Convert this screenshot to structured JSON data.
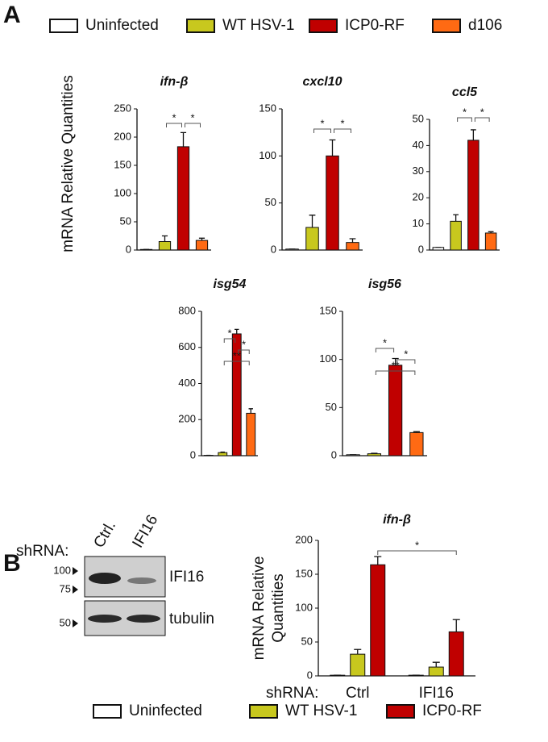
{
  "panel_labels": [
    "A",
    "B"
  ],
  "legend_a": [
    {
      "name": "Uninfected",
      "color": "#ffffff"
    },
    {
      "name": "WT HSV-1",
      "color": "#c8c81e"
    },
    {
      "name": "ICP0-RF",
      "color": "#c00000"
    },
    {
      "name": "d106",
      "color": "#ff6a13"
    }
  ],
  "ylabel_a": "mRNA  Relative Quantities",
  "blot": {
    "prefix": "shRNA:",
    "lanes": [
      "Ctrl.",
      "IFI16"
    ],
    "markers": [
      "100",
      "75",
      "50"
    ],
    "proteins": [
      "IFI16",
      "tubulin"
    ]
  },
  "chart_data": [
    {
      "type": "bar",
      "title": "ifn-β",
      "values": [
        1,
        15,
        183,
        17
      ],
      "errors": [
        0,
        10,
        25,
        4
      ],
      "ylim": [
        0,
        250
      ],
      "yticks": [
        0,
        50,
        100,
        150,
        200,
        250
      ],
      "brackets": [
        "*",
        "*"
      ]
    },
    {
      "type": "bar",
      "title": "cxcl10",
      "values": [
        1,
        24,
        100,
        8
      ],
      "errors": [
        0,
        13,
        17,
        4
      ],
      "ylim": [
        0,
        150
      ],
      "yticks": [
        0,
        50,
        100,
        150
      ],
      "brackets": [
        "*",
        "*"
      ]
    },
    {
      "type": "bar",
      "title": "ccl5",
      "values": [
        1,
        11,
        42,
        6.5
      ],
      "errors": [
        0,
        2.5,
        4,
        0.5
      ],
      "ylim": [
        0,
        50
      ],
      "yticks": [
        0,
        10,
        20,
        30,
        40,
        50
      ],
      "brackets": [
        "*",
        "*"
      ]
    },
    {
      "type": "bar",
      "title": "isg54",
      "values": [
        2,
        17,
        675,
        235
      ],
      "errors": [
        0,
        3,
        25,
        25
      ],
      "ylim": [
        0,
        800
      ],
      "yticks": [
        0,
        200,
        400,
        600,
        800
      ],
      "brackets": [
        "**",
        "*",
        "*"
      ]
    },
    {
      "type": "bar",
      "title": "isg56",
      "values": [
        1,
        2,
        94,
        24
      ],
      "errors": [
        0,
        0.5,
        7,
        1
      ],
      "ylim": [
        0,
        150
      ],
      "yticks": [
        0,
        50,
        100,
        150
      ],
      "brackets": [
        "**",
        "*",
        "*"
      ]
    },
    {
      "type": "grouped_bar",
      "title": "ifn-β",
      "ylabel": [
        "mRNA Relative",
        "Quantities"
      ],
      "xprefix": "shRNA:",
      "categories": [
        "Ctrl",
        "IFI16"
      ],
      "series": [
        {
          "name": "Uninfected",
          "color": "#ffffff",
          "values": [
            1,
            1
          ],
          "errors": [
            0,
            0
          ]
        },
        {
          "name": "WT HSV-1",
          "color": "#c8c81e",
          "values": [
            32,
            13
          ],
          "errors": [
            7,
            7
          ]
        },
        {
          "name": "ICP0-RF",
          "color": "#c00000",
          "values": [
            164,
            65
          ],
          "errors": [
            12,
            18
          ]
        }
      ],
      "ylim": [
        0,
        200
      ],
      "yticks": [
        0,
        50,
        100,
        150,
        200
      ],
      "brackets": [
        "*"
      ]
    }
  ]
}
